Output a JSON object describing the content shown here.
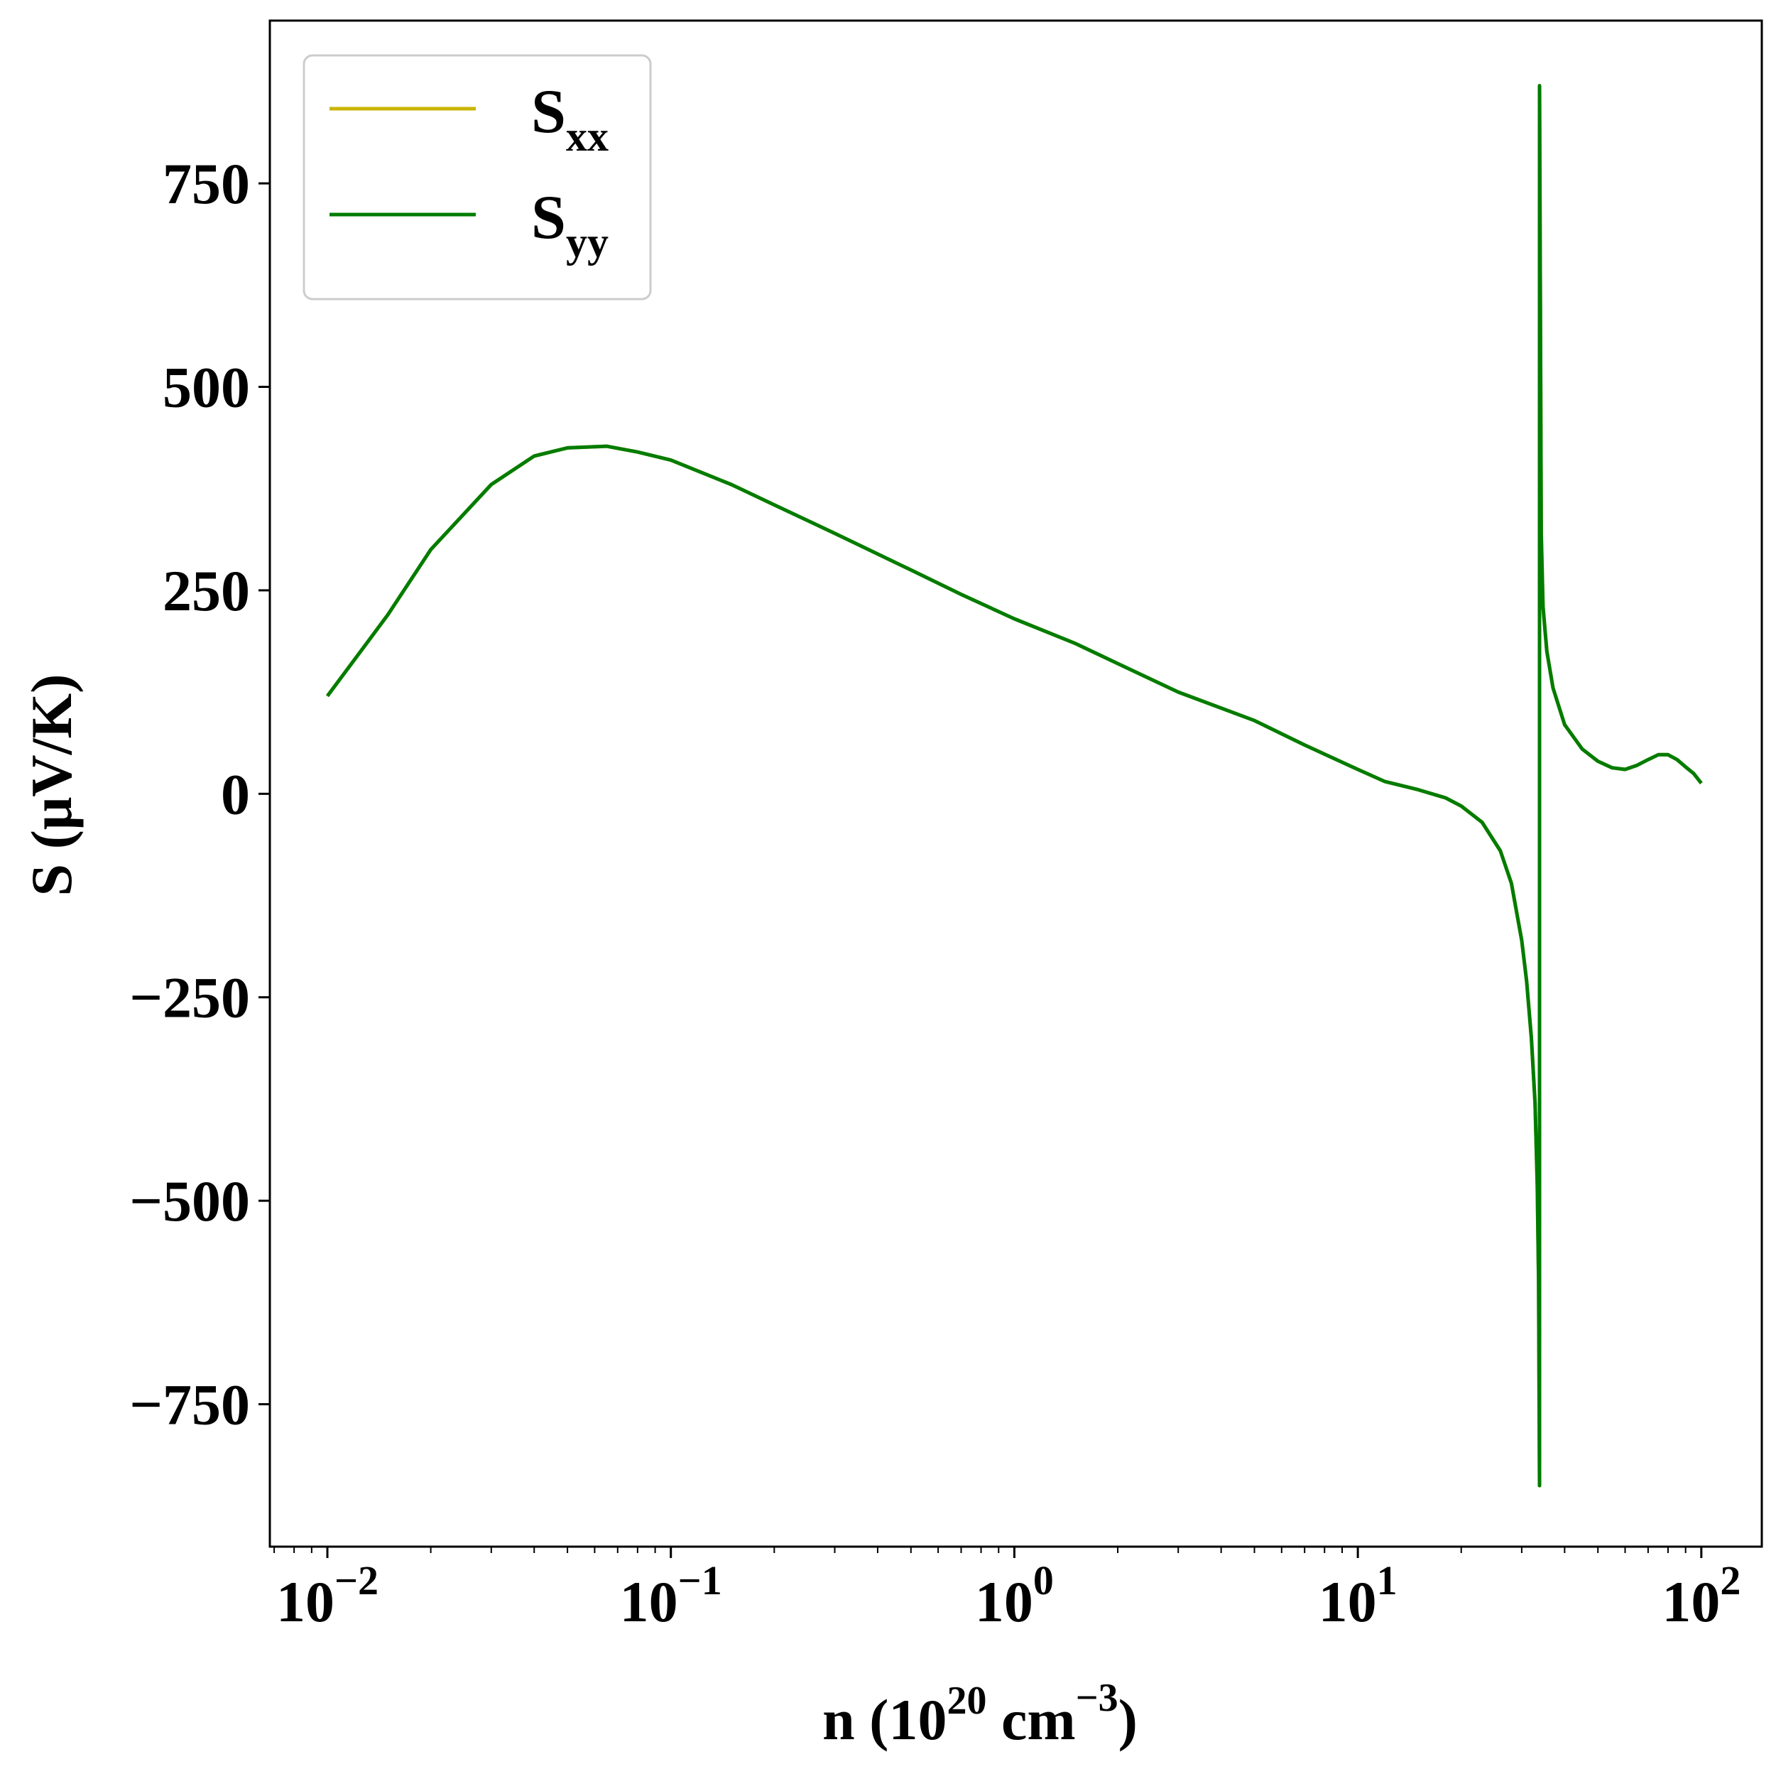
{
  "chart_data": {
    "type": "line",
    "title": "",
    "xscale": "log",
    "xlim": [
      0.0068,
      150
    ],
    "ylim": [
      -925,
      950
    ],
    "grid": false,
    "legend_position": "upper-left",
    "x_ticks": [
      {
        "value": 0.01,
        "base": "10",
        "exp": "−2"
      },
      {
        "value": 0.1,
        "base": "10",
        "exp": "−1"
      },
      {
        "value": 1,
        "base": "10",
        "exp": "0"
      },
      {
        "value": 10,
        "base": "10",
        "exp": "1"
      },
      {
        "value": 100,
        "base": "10",
        "exp": "2"
      }
    ],
    "y_ticks": [
      {
        "value": 750,
        "label": "750"
      },
      {
        "value": 500,
        "label": "500"
      },
      {
        "value": 250,
        "label": "250"
      },
      {
        "value": 0,
        "label": "0"
      },
      {
        "value": -250,
        "label": "−250"
      },
      {
        "value": -500,
        "label": "−500"
      },
      {
        "value": -750,
        "label": "−750"
      }
    ],
    "xlabel": {
      "pre": "n (10",
      "sup1": "20",
      "mid": " cm",
      "sup2": "−3",
      "post": ")"
    },
    "ylabel": "S (μV/K)",
    "series": [
      {
        "name": "S",
        "sub": "xx",
        "color": "#c8b400",
        "x": [
          0.01,
          0.015,
          0.02,
          0.03,
          0.04,
          0.05,
          0.065,
          0.08,
          0.1,
          0.15,
          0.2,
          0.3,
          0.5,
          0.7,
          1,
          1.5,
          2,
          3,
          5,
          7,
          10,
          12,
          15,
          18,
          20,
          23,
          26,
          28,
          30,
          31,
          32,
          32.8,
          33.3,
          33.6,
          33.8,
          33.8,
          34.0,
          34.2,
          34.6,
          35.5,
          37,
          40,
          45,
          50,
          55,
          60,
          65,
          70,
          75,
          80,
          85,
          90,
          95,
          100
        ],
        "y": [
          120,
          220,
          300,
          380,
          415,
          425,
          427,
          420,
          410,
          380,
          355,
          320,
          275,
          245,
          215,
          185,
          160,
          125,
          90,
          60,
          30,
          15,
          5,
          -5,
          -15,
          -35,
          -70,
          -110,
          -180,
          -230,
          -300,
          -380,
          -480,
          -600,
          -850,
          870,
          600,
          320,
          230,
          175,
          130,
          85,
          55,
          40,
          32,
          30,
          35,
          42,
          48,
          48,
          42,
          33,
          25,
          13
        ]
      },
      {
        "name": "S",
        "sub": "yy",
        "color": "#007c00",
        "x": [
          0.01,
          0.015,
          0.02,
          0.03,
          0.04,
          0.05,
          0.065,
          0.08,
          0.1,
          0.15,
          0.2,
          0.3,
          0.5,
          0.7,
          1,
          1.5,
          2,
          3,
          5,
          7,
          10,
          12,
          15,
          18,
          20,
          23,
          26,
          28,
          30,
          31,
          32,
          32.8,
          33.3,
          33.6,
          33.8,
          33.8,
          34.0,
          34.2,
          34.6,
          35.5,
          37,
          40,
          45,
          50,
          55,
          60,
          65,
          70,
          75,
          80,
          85,
          90,
          95,
          100
        ],
        "y": [
          120,
          220,
          300,
          380,
          415,
          425,
          427,
          420,
          410,
          380,
          355,
          320,
          275,
          245,
          215,
          185,
          160,
          125,
          90,
          60,
          30,
          15,
          5,
          -5,
          -15,
          -35,
          -70,
          -110,
          -180,
          -230,
          -300,
          -380,
          -480,
          -600,
          -850,
          870,
          600,
          320,
          230,
          175,
          130,
          85,
          55,
          40,
          32,
          30,
          35,
          42,
          48,
          48,
          42,
          33,
          25,
          13
        ]
      }
    ]
  }
}
